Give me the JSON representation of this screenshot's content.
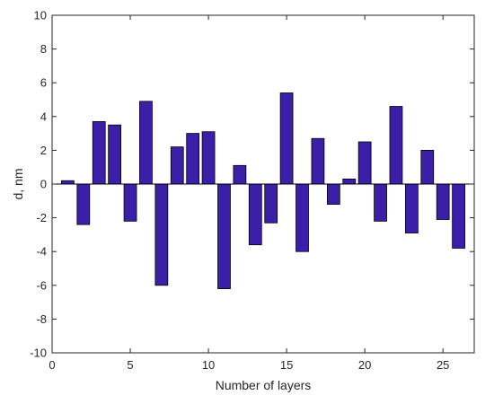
{
  "chart_data": {
    "type": "bar",
    "title": "",
    "xlabel": "Number of layers",
    "ylabel": "d, nm",
    "xlim": [
      0,
      27
    ],
    "ylim": [
      -10,
      10
    ],
    "xticks": [
      0,
      5,
      10,
      15,
      20,
      25
    ],
    "yticks": [
      -10,
      -8,
      -6,
      -4,
      -2,
      0,
      2,
      4,
      6,
      8,
      10
    ],
    "grid": false,
    "legend": "none",
    "bar_color": "#3b1fa8",
    "bar_edge_color": "#000000",
    "x": [
      1,
      2,
      3,
      4,
      5,
      6,
      7,
      8,
      9,
      10,
      11,
      12,
      13,
      14,
      15,
      16,
      17,
      18,
      19,
      20,
      21,
      22,
      23,
      24,
      25,
      26
    ],
    "values": [
      0.2,
      -2.4,
      3.7,
      3.5,
      -2.2,
      4.9,
      -6.0,
      2.2,
      3.0,
      3.1,
      -6.2,
      1.1,
      -3.6,
      -2.3,
      5.4,
      -4.0,
      2.7,
      -1.2,
      0.3,
      2.5,
      -2.2,
      4.6,
      -2.9,
      2.0,
      -2.1,
      -3.8
    ]
  }
}
